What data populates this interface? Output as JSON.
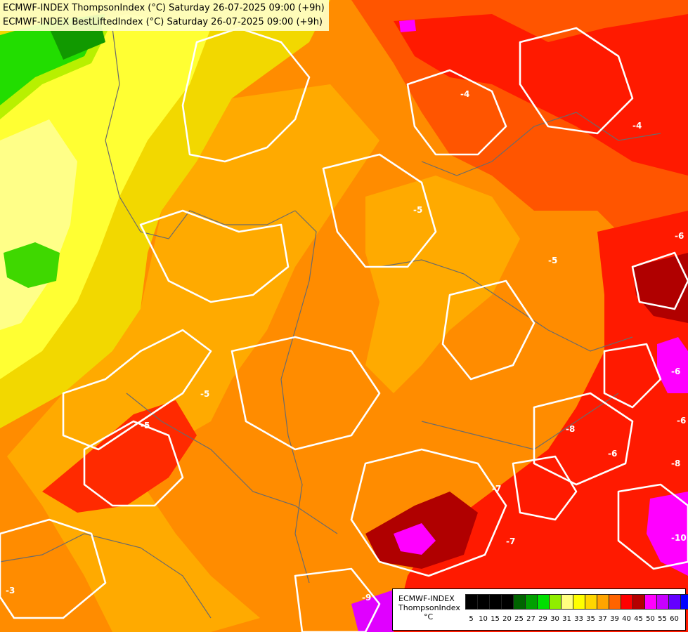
{
  "header": {
    "line1": "ECMWF-INDEX ThompsonIndex (°C) Saturday 26-07-2025 09:00 (+9h)",
    "line2": "ECMWF-INDEX BestLiftedIndex (°C) Saturday 26-07-2025 09:00 (+9h)"
  },
  "legend": {
    "model": "ECMWF-INDEX",
    "parameter": "ThompsonIndex",
    "unit": "°C",
    "ticks": [
      "5",
      "10",
      "15",
      "20",
      "25",
      "27",
      "29",
      "30",
      "31",
      "33",
      "35",
      "37",
      "39",
      "40",
      "45",
      "50",
      "55",
      "60"
    ],
    "colors": [
      "#000000",
      "#000000",
      "#000000",
      "#000000",
      "#006400",
      "#00a000",
      "#00e000",
      "#90ee00",
      "#ffff80",
      "#ffff00",
      "#ffd700",
      "#ffa500",
      "#ff6400",
      "#ff0000",
      "#b40000",
      "#ff00ff",
      "#c800ff",
      "#6400ff",
      "#0000ff"
    ]
  },
  "contour_labels": [
    "-4",
    "-4",
    "-5",
    "-5",
    "-5",
    "-6",
    "-6",
    "-5",
    "-6",
    "-6",
    "-8",
    "-7",
    "-9",
    "-3",
    "-8",
    "-10",
    "-7"
  ],
  "colors": {
    "overlay_contour": "#ffffff",
    "border_lines": "#6b6b6b"
  }
}
